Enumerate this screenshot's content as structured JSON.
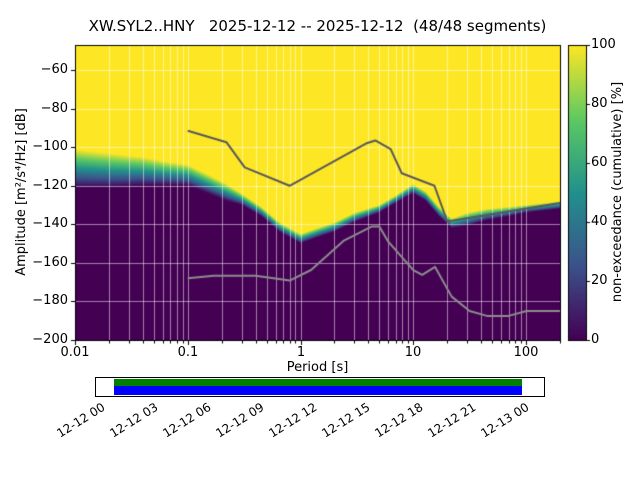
{
  "chart_data": {
    "type": "heatmap",
    "title": "XW.SYL2..HNY   2025-12-12 -- 2025-12-12  (48/48 segments)",
    "xlabel": "Period [s]",
    "ylabel": "Amplitude [m²/s⁴/Hz] [dB]",
    "xscale": "log",
    "xlim": [
      0.01,
      200
    ],
    "ylim": [
      -200,
      -47
    ],
    "grid": true,
    "xtick_values": [
      0.01,
      0.1,
      1,
      10,
      100
    ],
    "xtick_labels": [
      "0.01",
      "0.1",
      "1",
      "10",
      "100"
    ],
    "ytick_values": [
      -60,
      -80,
      -100,
      -120,
      -140,
      -160,
      -180,
      -200
    ],
    "ytick_labels": [
      "−60",
      "−80",
      "−100",
      "−120",
      "−140",
      "−160",
      "−180",
      "−200"
    ],
    "colorbar": {
      "label": "non-exceedance (cumulative) [%]",
      "range": [
        0,
        100
      ],
      "tick_values": [
        0,
        20,
        40,
        60,
        80,
        100
      ],
      "tick_labels": [
        "0",
        "20",
        "40",
        "60",
        "80",
        "100"
      ],
      "colormap": "viridis",
      "viridis_stops": [
        "#440154",
        "#3b528b",
        "#21918c",
        "#5ec962",
        "#fde725"
      ]
    },
    "heatmap": {
      "periods_s": [
        0.01,
        0.02,
        0.04,
        0.06,
        0.1,
        0.15,
        0.22,
        0.3,
        0.45,
        0.65,
        1.0,
        1.4,
        2,
        3,
        5,
        7,
        10,
        13,
        17,
        22,
        30,
        45,
        70,
        100,
        200
      ],
      "band_top_db": [
        -101,
        -103,
        -105,
        -107,
        -109,
        -114,
        -119,
        -124,
        -131,
        -139,
        -145,
        -142,
        -139,
        -134,
        -130,
        -125,
        -119,
        -123,
        -131,
        -137,
        -134,
        -132,
        -131,
        -130,
        -128
      ],
      "band_bottom_db": [
        -121,
        -121,
        -120,
        -120,
        -120,
        -124,
        -128,
        -130,
        -136,
        -144,
        -150,
        -147,
        -144,
        -139,
        -134,
        -129,
        -124,
        -128,
        -136,
        -142,
        -141,
        -138,
        -136,
        -134,
        -132
      ]
    },
    "noise_models": [
      {
        "name": "high-noise-model-line",
        "color": "#595959",
        "points": [
          [
            0.1,
            -91.5
          ],
          [
            0.22,
            -97.4
          ],
          [
            0.32,
            -110.5
          ],
          [
            0.8,
            -120.0
          ],
          [
            3.8,
            -98.1
          ],
          [
            4.6,
            -96.5
          ],
          [
            6.3,
            -101.0
          ],
          [
            7.9,
            -113.5
          ],
          [
            15.4,
            -120.0
          ],
          [
            20,
            -138.5
          ],
          [
            200,
            -129.0
          ]
        ]
      },
      {
        "name": "low-noise-model-line",
        "color": "#8c8c8c",
        "points": [
          [
            0.1,
            -168.0
          ],
          [
            0.17,
            -166.7
          ],
          [
            0.4,
            -166.7
          ],
          [
            0.8,
            -169.2
          ],
          [
            1.24,
            -163.7
          ],
          [
            2.4,
            -148.6
          ],
          [
            4.3,
            -141.1
          ],
          [
            5.0,
            -141.1
          ],
          [
            6.0,
            -149.0
          ],
          [
            10.0,
            -163.8
          ],
          [
            12.0,
            -166.2
          ],
          [
            15.6,
            -162.1
          ],
          [
            21.9,
            -177.5
          ],
          [
            31.6,
            -185.0
          ],
          [
            45,
            -187.5
          ],
          [
            70,
            -187.5
          ],
          [
            101,
            -185.0
          ],
          [
            200,
            -184.9
          ]
        ]
      }
    ]
  },
  "timeline": {
    "tick_labels": [
      "12-12 00",
      "12-12 03",
      "12-12 06",
      "12-12 09",
      "12-12 12",
      "12-12 15",
      "12-12 18",
      "12-12 21",
      "12-13 00"
    ],
    "bar_top_color": "#008000",
    "bar_bottom_color": "#0000ff"
  }
}
